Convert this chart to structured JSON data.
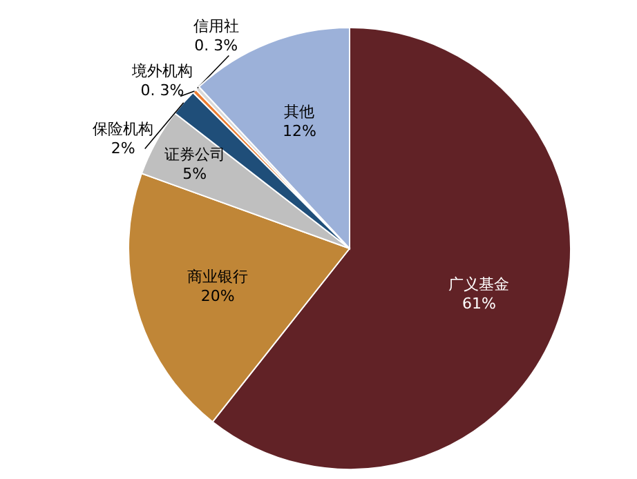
{
  "chart_data": {
    "type": "pie",
    "categories": [
      "广义基金",
      "商业银行",
      "证券公司",
      "保险机构",
      "境外机构",
      "信用社",
      "其他"
    ],
    "values": [
      61,
      20,
      5,
      2,
      0.3,
      0.3,
      12
    ],
    "value_labels": [
      "61%",
      "20%",
      "5%",
      "2%",
      "0. 3%",
      "0. 3%",
      "12%"
    ],
    "colors": [
      "#612226",
      "#c08637",
      "#bfbfbf",
      "#1f4e79",
      "#ed7d31",
      "#d9d9d9",
      "#9cb1d9"
    ]
  }
}
